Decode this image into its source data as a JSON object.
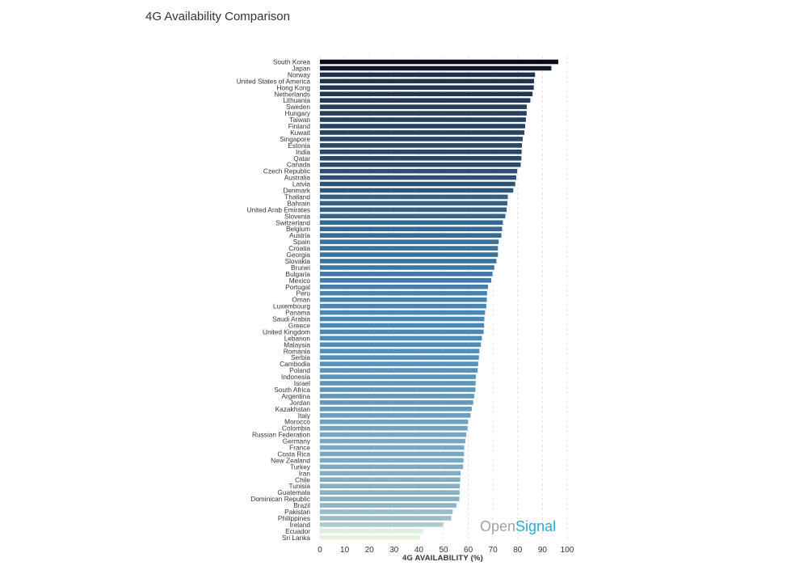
{
  "page": {
    "title": "4G Availability Comparison"
  },
  "watermark": {
    "part1": "Open",
    "part2": "Signal"
  },
  "chart_data": {
    "type": "bar",
    "orientation": "horizontal",
    "title": "4G Availability Comparison",
    "xlabel": "4G AVAILABILITY (%)",
    "ylabel": "",
    "xlim": [
      0,
      100
    ],
    "x_ticks": [
      0,
      10,
      20,
      30,
      40,
      50,
      60,
      70,
      80,
      90,
      100
    ],
    "grid": "vertical dashed",
    "color_scale": {
      "high": "#0a0a1e",
      "mid": "#4a8ab8",
      "low": "#e4f3dc"
    },
    "categories": [
      "South Korea",
      "Japan",
      "Norway",
      "United States of America",
      "Hong Kong",
      "Netherlands",
      "Lithuania",
      "Sweden",
      "Hungary",
      "Taiwan",
      "Finland",
      "Kuwait",
      "Singapore",
      "Estonia",
      "India",
      "Qatar",
      "Canada",
      "Czech Republic",
      "Australia",
      "Latvia",
      "Denmark",
      "Thailand",
      "Bahrain",
      "United Arab Emirates",
      "Slovenia",
      "Switzerland",
      "Belgium",
      "Austria",
      "Spain",
      "Croatia",
      "Georgia",
      "Slovakia",
      "Brunei",
      "Bulgaria",
      "Mexico",
      "Portugal",
      "Peru",
      "Oman",
      "Luxembourg",
      "Panama",
      "Saudi Arabia",
      "Greece",
      "United Kingdom",
      "Lebanon",
      "Malaysia",
      "Romania",
      "Serbia",
      "Cambodia",
      "Poland",
      "Indonesia",
      "Israel",
      "South Africa",
      "Argentina",
      "Jordan",
      "Kazakhstan",
      "Italy",
      "Morocco",
      "Colombia",
      "Russian Federation",
      "Germany",
      "France",
      "Costa Rica",
      "New Zealand",
      "Turkey",
      "Iran",
      "Chile",
      "Tunisia",
      "Guatemala",
      "Dominican Republic",
      "Brazil",
      "Pakistan",
      "Philippines",
      "Ireland",
      "Ecuador",
      "Sri Lanka"
    ],
    "values": [
      96.4,
      93.6,
      87.0,
      86.6,
      86.5,
      86.0,
      85.1,
      83.7,
      83.6,
      83.3,
      83.0,
      82.7,
      82.0,
      81.7,
      81.6,
      81.5,
      81.2,
      79.8,
      79.4,
      79.0,
      78.2,
      76.0,
      75.8,
      75.5,
      75.0,
      74.0,
      73.7,
      73.4,
      72.3,
      72.0,
      72.0,
      71.4,
      70.5,
      69.8,
      69.3,
      68.0,
      67.6,
      67.5,
      67.3,
      66.8,
      66.5,
      66.4,
      66.2,
      65.5,
      65.1,
      64.5,
      64.3,
      64.0,
      63.8,
      63.1,
      63.0,
      62.9,
      62.4,
      62.0,
      61.4,
      60.9,
      59.9,
      59.7,
      59.2,
      58.8,
      58.4,
      58.3,
      58.1,
      57.9,
      56.9,
      56.8,
      56.6,
      56.5,
      56.4,
      55.2,
      53.7,
      53.1,
      49.8,
      41.7,
      40.7
    ]
  }
}
